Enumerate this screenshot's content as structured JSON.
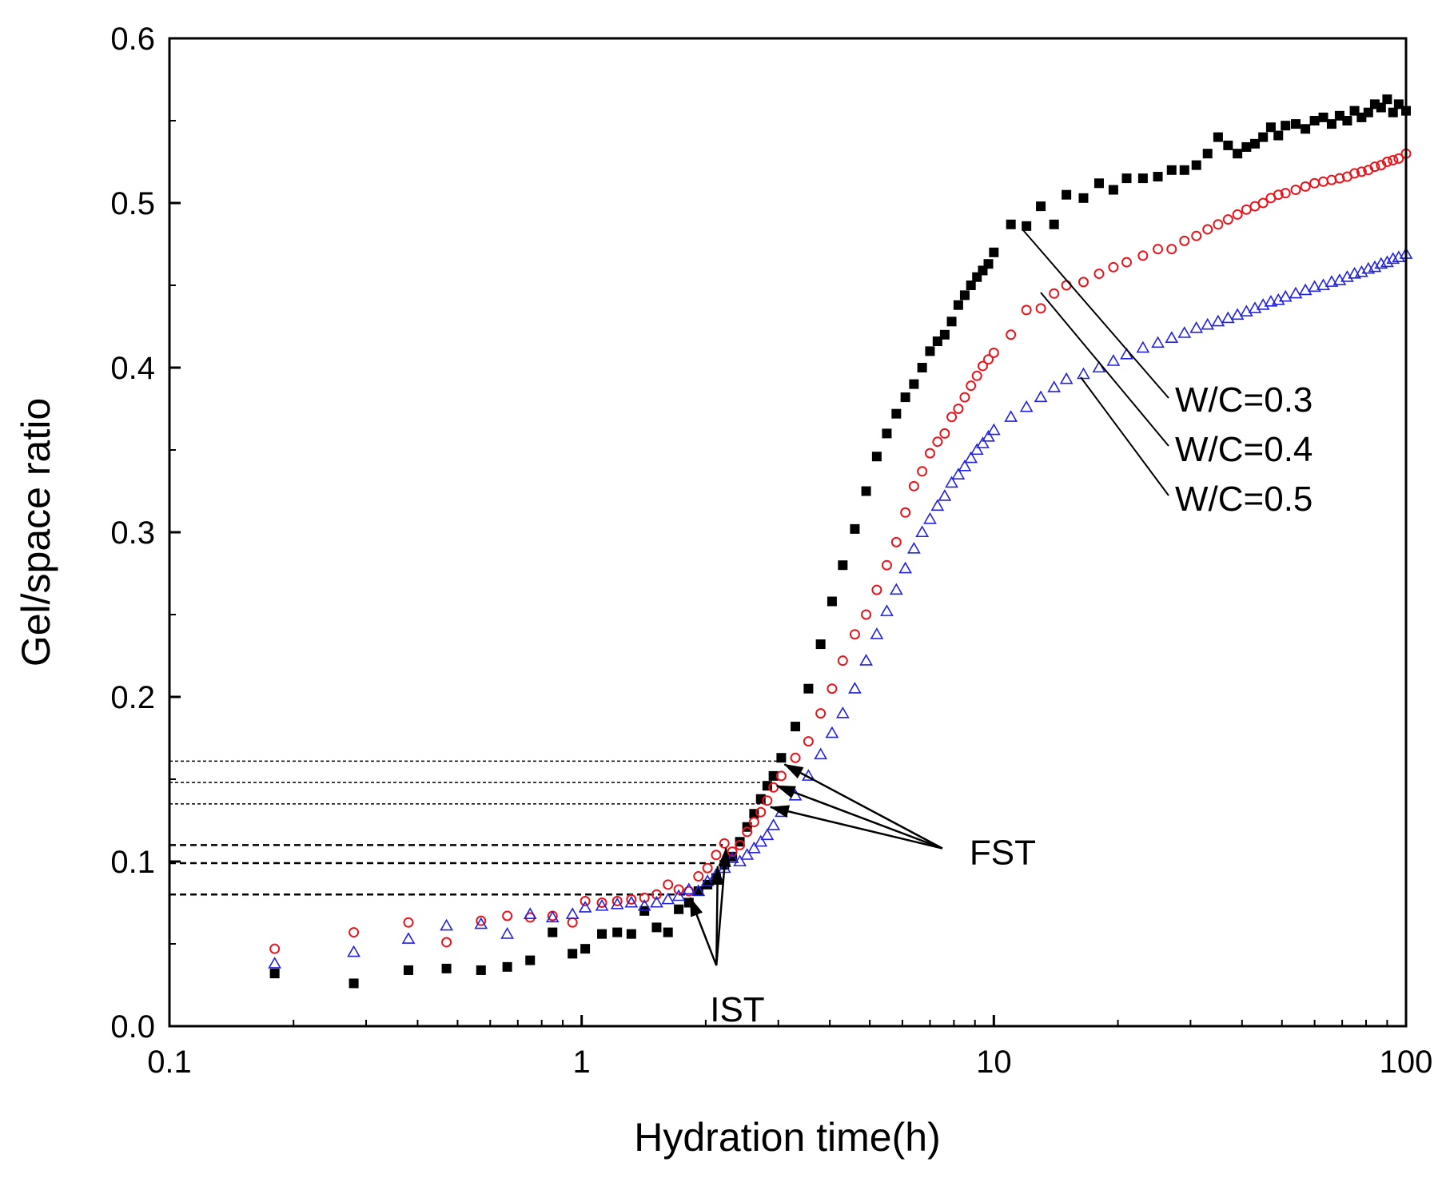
{
  "chart_data": {
    "type": "scatter",
    "title": "",
    "xlabel": "Hydration time(h)",
    "ylabel": "Gel/space ratio",
    "xscale": "log",
    "xlim": [
      0.1,
      100
    ],
    "ylim": [
      0.0,
      0.6
    ],
    "x_ticks": [
      {
        "value": 0.1,
        "label": "0.1"
      },
      {
        "value": 1,
        "label": "1"
      },
      {
        "value": 10,
        "label": "10"
      },
      {
        "value": 100,
        "label": "100"
      }
    ],
    "y_ticks": [
      {
        "value": 0.0,
        "label": "0.0"
      },
      {
        "value": 0.1,
        "label": "0.1"
      },
      {
        "value": 0.2,
        "label": "0.2"
      },
      {
        "value": 0.3,
        "label": "0.3"
      },
      {
        "value": 0.4,
        "label": "0.4"
      },
      {
        "value": 0.5,
        "label": "0.5"
      },
      {
        "value": 0.6,
        "label": "0.6"
      }
    ],
    "grid": false,
    "legend_placement": "right",
    "colors": {
      "wc03": "#000000",
      "wc04": "#e8141b",
      "wc05": "#2222dd"
    },
    "series": [
      {
        "name": "W/C=0.3",
        "label": "W/C=0.3",
        "marker": "filled-square",
        "color": "#000000",
        "x": [
          0.18,
          0.28,
          0.38,
          0.47,
          0.57,
          0.66,
          0.75,
          0.85,
          0.95,
          1.02,
          1.12,
          1.22,
          1.32,
          1.42,
          1.52,
          1.62,
          1.72,
          1.82,
          1.92,
          2.02,
          2.12,
          2.22,
          2.32,
          2.42,
          2.52,
          2.62,
          2.72,
          2.82,
          2.92,
          3.05,
          3.3,
          3.55,
          3.8,
          4.05,
          4.3,
          4.6,
          4.9,
          5.2,
          5.5,
          5.8,
          6.1,
          6.4,
          6.7,
          7.0,
          7.3,
          7.6,
          7.9,
          8.2,
          8.5,
          8.8,
          9.1,
          9.4,
          9.7,
          10.0,
          11.0,
          12.0,
          13.0,
          14.0,
          15.0,
          16.5,
          18.0,
          19.5,
          21.0,
          23.0,
          25.0,
          27.0,
          29.0,
          31.0,
          33.0,
          35.0,
          37.0,
          39.0,
          41.0,
          43.0,
          45.0,
          47.0,
          49.0,
          51.0,
          54.0,
          57.0,
          60.0,
          63.0,
          66.0,
          69.0,
          72.0,
          75.0,
          78.0,
          81.0,
          84.0,
          87.0,
          90.0,
          93.0,
          96.0,
          100.0
        ],
        "y": [
          0.032,
          0.026,
          0.034,
          0.035,
          0.034,
          0.036,
          0.04,
          0.057,
          0.044,
          0.047,
          0.056,
          0.057,
          0.056,
          0.07,
          0.06,
          0.057,
          0.071,
          0.075,
          0.082,
          0.086,
          0.09,
          0.098,
          0.103,
          0.112,
          0.121,
          0.129,
          0.138,
          0.146,
          0.152,
          0.163,
          0.182,
          0.205,
          0.232,
          0.258,
          0.28,
          0.302,
          0.325,
          0.346,
          0.36,
          0.372,
          0.382,
          0.39,
          0.4,
          0.41,
          0.416,
          0.42,
          0.428,
          0.438,
          0.444,
          0.45,
          0.455,
          0.459,
          0.463,
          0.47,
          0.487,
          0.486,
          0.498,
          0.487,
          0.505,
          0.503,
          0.512,
          0.508,
          0.515,
          0.515,
          0.516,
          0.52,
          0.52,
          0.523,
          0.53,
          0.54,
          0.535,
          0.53,
          0.534,
          0.536,
          0.54,
          0.546,
          0.541,
          0.547,
          0.548,
          0.545,
          0.55,
          0.552,
          0.548,
          0.553,
          0.55,
          0.556,
          0.552,
          0.555,
          0.56,
          0.558,
          0.563,
          0.555,
          0.56,
          0.556
        ]
      },
      {
        "name": "W/C=0.4",
        "label": "W/C=0.4",
        "marker": "open-circle",
        "color": "#e8141b",
        "x": [
          0.18,
          0.28,
          0.38,
          0.47,
          0.57,
          0.66,
          0.75,
          0.85,
          0.95,
          1.02,
          1.12,
          1.22,
          1.32,
          1.42,
          1.52,
          1.62,
          1.72,
          1.82,
          1.92,
          2.02,
          2.12,
          2.22,
          2.32,
          2.42,
          2.52,
          2.62,
          2.72,
          2.82,
          2.92,
          3.05,
          3.3,
          3.55,
          3.8,
          4.05,
          4.3,
          4.6,
          4.9,
          5.2,
          5.5,
          5.8,
          6.1,
          6.4,
          6.7,
          7.0,
          7.3,
          7.6,
          7.9,
          8.2,
          8.5,
          8.8,
          9.1,
          9.4,
          9.7,
          10.0,
          11.0,
          12.0,
          13.0,
          14.0,
          15.0,
          16.5,
          18.0,
          19.5,
          21.0,
          23.0,
          25.0,
          27.0,
          29.0,
          31.0,
          33.0,
          35.0,
          37.0,
          39.0,
          41.0,
          43.0,
          45.0,
          47.0,
          49.0,
          51.0,
          54.0,
          57.0,
          60.0,
          63.0,
          66.0,
          69.0,
          72.0,
          75.0,
          78.0,
          81.0,
          84.0,
          87.0,
          90.0,
          93.0,
          96.0,
          100.0
        ],
        "y": [
          0.047,
          0.057,
          0.063,
          0.051,
          0.064,
          0.067,
          0.066,
          0.067,
          0.063,
          0.076,
          0.075,
          0.076,
          0.077,
          0.078,
          0.08,
          0.086,
          0.083,
          0.082,
          0.091,
          0.096,
          0.104,
          0.111,
          0.106,
          0.11,
          0.118,
          0.124,
          0.13,
          0.137,
          0.145,
          0.152,
          0.163,
          0.173,
          0.19,
          0.205,
          0.222,
          0.238,
          0.25,
          0.265,
          0.28,
          0.294,
          0.312,
          0.328,
          0.337,
          0.348,
          0.355,
          0.36,
          0.37,
          0.375,
          0.382,
          0.389,
          0.395,
          0.401,
          0.405,
          0.409,
          0.42,
          0.435,
          0.436,
          0.445,
          0.45,
          0.452,
          0.457,
          0.461,
          0.464,
          0.468,
          0.472,
          0.472,
          0.477,
          0.48,
          0.484,
          0.487,
          0.49,
          0.493,
          0.496,
          0.498,
          0.5,
          0.503,
          0.505,
          0.506,
          0.508,
          0.51,
          0.512,
          0.513,
          0.514,
          0.515,
          0.516,
          0.518,
          0.519,
          0.52,
          0.522,
          0.523,
          0.525,
          0.526,
          0.527,
          0.53
        ]
      },
      {
        "name": "W/C=0.5",
        "label": "W/C=0.5",
        "marker": "open-triangle",
        "color": "#2222dd",
        "x": [
          0.18,
          0.28,
          0.38,
          0.47,
          0.57,
          0.66,
          0.75,
          0.85,
          0.95,
          1.02,
          1.12,
          1.22,
          1.32,
          1.42,
          1.52,
          1.62,
          1.72,
          1.82,
          1.92,
          2.02,
          2.12,
          2.22,
          2.32,
          2.42,
          2.52,
          2.62,
          2.72,
          2.82,
          2.92,
          3.05,
          3.3,
          3.55,
          3.8,
          4.05,
          4.3,
          4.6,
          4.9,
          5.2,
          5.5,
          5.8,
          6.1,
          6.4,
          6.7,
          7.0,
          7.3,
          7.6,
          7.9,
          8.2,
          8.5,
          8.8,
          9.1,
          9.4,
          9.7,
          10.0,
          11.0,
          12.0,
          13.0,
          14.0,
          15.0,
          16.5,
          18.0,
          19.5,
          21.0,
          23.0,
          25.0,
          27.0,
          29.0,
          31.0,
          33.0,
          35.0,
          37.0,
          39.0,
          41.0,
          43.0,
          45.0,
          47.0,
          49.0,
          51.0,
          54.0,
          57.0,
          60.0,
          63.0,
          66.0,
          69.0,
          72.0,
          75.0,
          78.0,
          81.0,
          84.0,
          87.0,
          90.0,
          93.0,
          96.0,
          100.0
        ],
        "y": [
          0.038,
          0.045,
          0.053,
          0.061,
          0.062,
          0.056,
          0.068,
          0.066,
          0.068,
          0.072,
          0.073,
          0.074,
          0.075,
          0.073,
          0.075,
          0.077,
          0.079,
          0.083,
          0.082,
          0.088,
          0.092,
          0.096,
          0.102,
          0.1,
          0.104,
          0.108,
          0.112,
          0.116,
          0.122,
          0.13,
          0.14,
          0.152,
          0.165,
          0.178,
          0.19,
          0.205,
          0.222,
          0.238,
          0.252,
          0.265,
          0.278,
          0.29,
          0.3,
          0.308,
          0.316,
          0.322,
          0.33,
          0.335,
          0.34,
          0.345,
          0.35,
          0.354,
          0.358,
          0.362,
          0.37,
          0.376,
          0.382,
          0.388,
          0.393,
          0.396,
          0.4,
          0.404,
          0.408,
          0.412,
          0.415,
          0.418,
          0.421,
          0.424,
          0.426,
          0.428,
          0.43,
          0.432,
          0.434,
          0.436,
          0.438,
          0.44,
          0.441,
          0.443,
          0.445,
          0.447,
          0.449,
          0.45,
          0.452,
          0.453,
          0.455,
          0.457,
          0.458,
          0.46,
          0.461,
          0.463,
          0.464,
          0.466,
          0.467,
          0.469
        ]
      }
    ],
    "annotations": {
      "fst": {
        "label": "FST",
        "text_x": 7.5,
        "text_y": 0.108,
        "points": [
          {
            "series": "W/C=0.3",
            "x": 3.05,
            "y": 0.161
          },
          {
            "series": "W/C=0.4",
            "x": 2.92,
            "y": 0.148
          },
          {
            "series": "W/C=0.5",
            "x": 2.82,
            "y": 0.135
          }
        ]
      },
      "ist": {
        "label": "IST",
        "text_x": 2.2,
        "text_y": 0.032,
        "points": [
          {
            "series": "W/C=0.3",
            "x": 1.8,
            "y": 0.08
          },
          {
            "series": "W/C=0.4",
            "x": 2.1,
            "y": 0.099
          },
          {
            "series": "W/C=0.5",
            "x": 2.2,
            "y": 0.11
          }
        ]
      }
    }
  }
}
